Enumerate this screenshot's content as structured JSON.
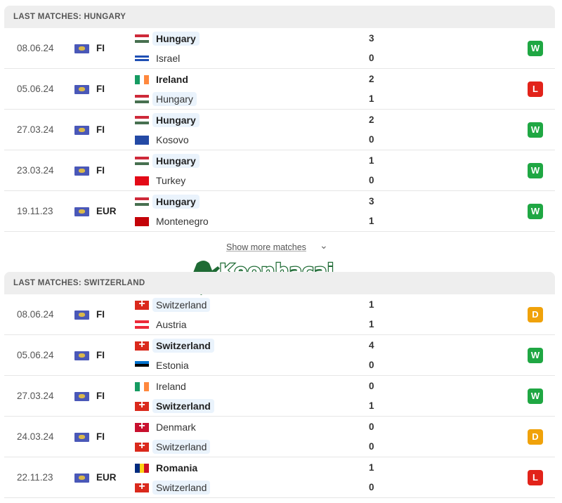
{
  "show_more": "Show more matches",
  "logo_text": "Keonhacai .FOOTBALL",
  "result_colors": {
    "W": "#1fa743",
    "L": "#e2231a",
    "D": "#f0a20a"
  },
  "flags": {
    "Hungary": {
      "dir": "h",
      "c": [
        "#ce2939",
        "#ffffff",
        "#477050"
      ]
    },
    "Israel": {
      "dir": "h",
      "c": [
        "#ffffff",
        "#1f4fb4",
        "#ffffff",
        "#1f4fb4",
        "#ffffff"
      ]
    },
    "Ireland": {
      "dir": "v",
      "c": [
        "#169b62",
        "#ffffff",
        "#ff883e"
      ]
    },
    "Kosovo": {
      "dir": "h",
      "c": [
        "#244aa5"
      ]
    },
    "Turkey": {
      "dir": "h",
      "c": [
        "#e30a17"
      ]
    },
    "Montenegro": {
      "dir": "h",
      "c": [
        "#c40308"
      ]
    },
    "Switzerland": {
      "dir": "h",
      "c": [
        "#da291c"
      ],
      "cross": true
    },
    "Austria": {
      "dir": "h",
      "c": [
        "#ed2939",
        "#ffffff",
        "#ed2939"
      ]
    },
    "Estonia": {
      "dir": "h",
      "c": [
        "#0072ce",
        "#000000",
        "#ffffff"
      ]
    },
    "Denmark": {
      "dir": "h",
      "c": [
        "#c8102e"
      ],
      "cross": true
    },
    "Romania": {
      "dir": "v",
      "c": [
        "#002b7f",
        "#fcd116",
        "#ce1126"
      ]
    }
  },
  "sections": [
    {
      "title": "LAST MATCHES: HUNGARY",
      "focus": "Hungary",
      "matches": [
        {
          "date": "08.06.24",
          "comp": "FI",
          "home": "Hungary",
          "away": "Israel",
          "hs": "3",
          "as": "0",
          "result": "W"
        },
        {
          "date": "05.06.24",
          "comp": "FI",
          "home": "Ireland",
          "away": "Hungary",
          "hs": "2",
          "as": "1",
          "result": "L"
        },
        {
          "date": "27.03.24",
          "comp": "FI",
          "home": "Hungary",
          "away": "Kosovo",
          "hs": "2",
          "as": "0",
          "result": "W"
        },
        {
          "date": "23.03.24",
          "comp": "FI",
          "home": "Hungary",
          "away": "Turkey",
          "hs": "1",
          "as": "0",
          "result": "W"
        },
        {
          "date": "19.11.23",
          "comp": "EUR",
          "home": "Hungary",
          "away": "Montenegro",
          "hs": "3",
          "as": "1",
          "result": "W"
        }
      ]
    },
    {
      "title": "LAST MATCHES: SWITZERLAND",
      "focus": "Switzerland",
      "matches": [
        {
          "date": "08.06.24",
          "comp": "FI",
          "home": "Switzerland",
          "away": "Austria",
          "hs": "1",
          "as": "1",
          "result": "D"
        },
        {
          "date": "05.06.24",
          "comp": "FI",
          "home": "Switzerland",
          "away": "Estonia",
          "hs": "4",
          "as": "0",
          "result": "W"
        },
        {
          "date": "27.03.24",
          "comp": "FI",
          "home": "Ireland",
          "away": "Switzerland",
          "hs": "0",
          "as": "1",
          "result": "W"
        },
        {
          "date": "24.03.24",
          "comp": "FI",
          "home": "Denmark",
          "away": "Switzerland",
          "hs": "0",
          "as": "0",
          "result": "D"
        },
        {
          "date": "22.11.23",
          "comp": "EUR",
          "home": "Romania",
          "away": "Switzerland",
          "hs": "1",
          "as": "0",
          "result": "L"
        }
      ]
    }
  ]
}
